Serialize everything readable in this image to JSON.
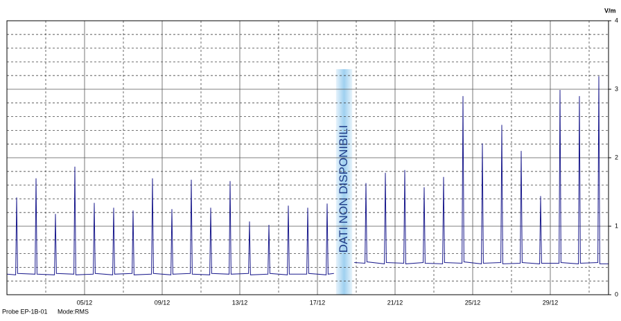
{
  "chart_data": {
    "type": "line",
    "y_label": "V/m",
    "footer": [
      "Probe EP-1B-01",
      "Mode:RMS"
    ],
    "annotation": "DATI NON DISPONIBILI",
    "color": "#1a1a8c",
    "xlim": [
      1,
      32
    ],
    "xticks": [
      {
        "value": 5,
        "label": "05/12"
      },
      {
        "value": 9,
        "label": "09/12"
      },
      {
        "value": 13,
        "label": "13/12"
      },
      {
        "value": 17,
        "label": "17/12"
      },
      {
        "value": 21,
        "label": "21/12"
      },
      {
        "value": 25,
        "label": "25/12"
      },
      {
        "value": 29,
        "label": "29/12"
      }
    ],
    "x_minor_ticks": [
      3,
      7,
      11,
      15,
      19,
      23,
      27,
      31
    ],
    "ylim": [
      0,
      4
    ],
    "yticks": [
      0,
      1,
      2,
      3,
      4
    ],
    "y_minor_ticks": [
      0.2,
      0.4,
      0.6,
      0.8,
      1.2,
      1.4,
      1.6,
      1.8,
      2.2,
      2.4,
      2.6,
      2.8,
      3.2,
      3.4,
      3.6,
      3.8
    ],
    "grid": true,
    "x": [
      1,
      1.45,
      1.5,
      1.55,
      2.45,
      2.5,
      2.55,
      3.45,
      3.5,
      3.55,
      4.45,
      4.5,
      4.55,
      5.45,
      5.5,
      5.55,
      6.45,
      6.5,
      6.55,
      7.45,
      7.5,
      7.55,
      8.45,
      8.5,
      8.55,
      9.45,
      9.5,
      9.55,
      10.45,
      10.5,
      10.55,
      11.45,
      11.5,
      11.55,
      12.45,
      12.5,
      12.55,
      13.45,
      13.5,
      13.55,
      14.45,
      14.5,
      14.55,
      15.45,
      15.5,
      15.55,
      16.45,
      16.5,
      16.55,
      17.45,
      17.5,
      17.55,
      17.85,
      18.3,
      18.9,
      19.45,
      19.5,
      19.55,
      20.45,
      20.5,
      20.55,
      21.45,
      21.5,
      21.55,
      22.45,
      22.5,
      22.55,
      23.45,
      23.5,
      23.55,
      24.45,
      24.5,
      24.55,
      25.45,
      25.5,
      25.55,
      26.45,
      26.5,
      26.55,
      27.45,
      27.5,
      27.55,
      28.45,
      28.5,
      28.55,
      29.45,
      29.5,
      29.55,
      30.45,
      30.5,
      30.55,
      31.45,
      31.5,
      31.55,
      32
    ],
    "values": [
      0.3,
      0.29,
      1.42,
      0.31,
      0.3,
      1.7,
      0.3,
      0.29,
      1.18,
      0.31,
      0.3,
      1.87,
      0.29,
      0.3,
      1.34,
      0.31,
      0.29,
      1.27,
      0.3,
      0.31,
      1.23,
      0.29,
      0.3,
      1.7,
      0.31,
      0.29,
      1.25,
      0.3,
      0.31,
      1.68,
      0.3,
      0.29,
      1.27,
      0.31,
      0.3,
      1.66,
      0.3,
      0.31,
      1.07,
      0.29,
      0.3,
      1.02,
      0.31,
      0.29,
      1.3,
      0.3,
      0.3,
      1.27,
      0.31,
      0.29,
      1.33,
      0.3,
      0.31,
      null,
      0.47,
      0.46,
      1.63,
      0.48,
      0.45,
      1.78,
      0.47,
      0.46,
      1.82,
      0.45,
      0.47,
      1.57,
      0.46,
      0.45,
      1.72,
      0.47,
      0.46,
      2.9,
      0.48,
      0.45,
      2.21,
      0.46,
      0.47,
      2.48,
      0.45,
      0.46,
      2.1,
      0.47,
      0.45,
      1.44,
      0.46,
      0.46,
      2.99,
      0.47,
      0.45,
      2.9,
      0.46,
      0.47,
      3.19,
      0.45,
      0.45
    ]
  }
}
